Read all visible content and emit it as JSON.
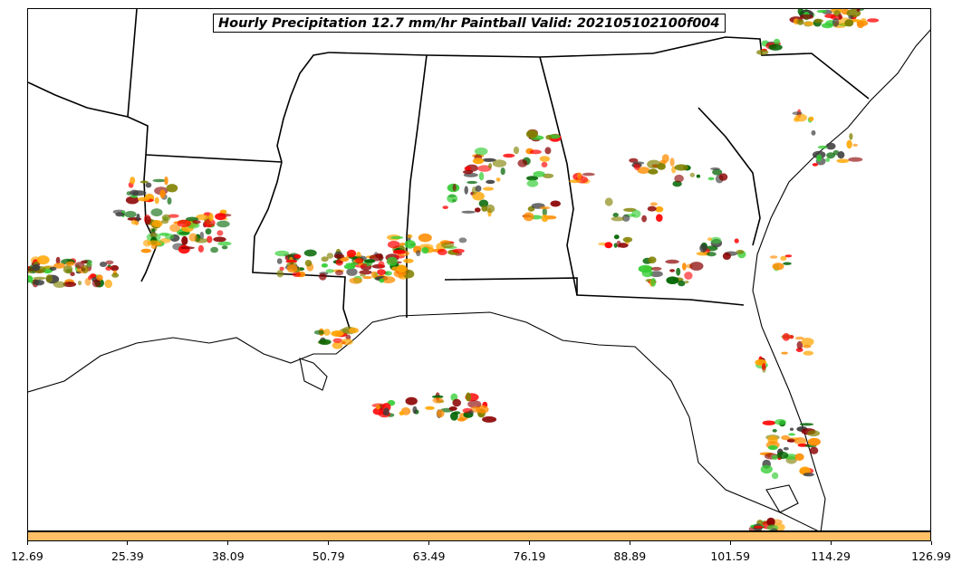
{
  "title": "Hourly Precipitation 12.7 mm/hr Paintball Valid: 202105102100f004",
  "colors": {
    "colorbar": "#FFBF66",
    "paint": [
      "#FF0000",
      "#FF8C00",
      "#32CD32",
      "#8B0000",
      "#808000",
      "#006400",
      "#FFA500",
      "#3C3C3C"
    ],
    "boundaries": "#000000"
  },
  "colorbar_ticks": [
    "12.69",
    "25.39",
    "38.09",
    "50.79",
    "63.49",
    "76.19",
    "88.89",
    "101.59",
    "114.29",
    "126.99"
  ]
}
